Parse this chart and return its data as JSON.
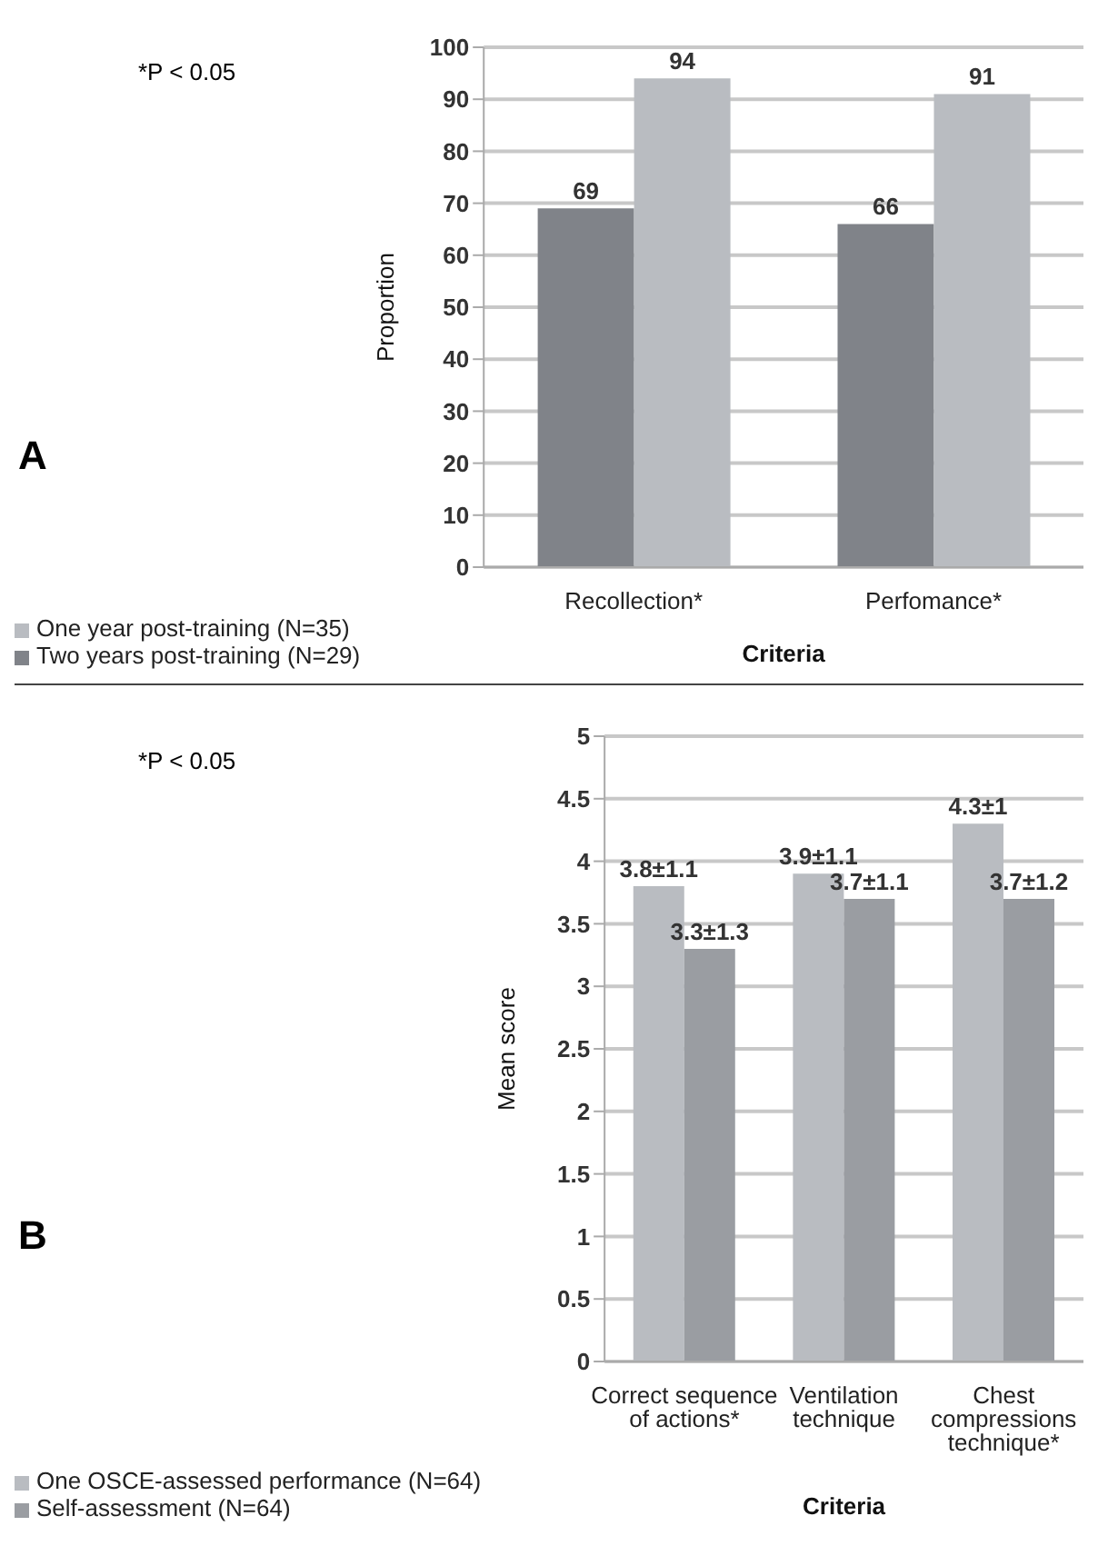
{
  "chart_data": [
    {
      "type": "bar",
      "ylabel": "Proportion",
      "xlabel": "Criteria",
      "categories": [
        "Recollection*",
        "Perfomance*"
      ],
      "series": [
        {
          "name": "Two years post-training (N=29)",
          "color": "#808389",
          "values": [
            69,
            66
          ]
        },
        {
          "name": "One year  post-training (N=35)",
          "color": "#b9bcc1",
          "values": [
            94,
            91
          ]
        }
      ],
      "ylim": [
        0,
        100
      ],
      "yticks": [
        0,
        10,
        20,
        30,
        40,
        50,
        60,
        70,
        80,
        90,
        100
      ],
      "grid": "y",
      "legend": "bottom",
      "data_labels": true,
      "annotations": [
        "A",
        "*P < 0.05"
      ]
    },
    {
      "type": "bar",
      "ylabel": "Mean score",
      "xlabel": "Criteria",
      "categories": [
        "Correct sequence of actions*",
        "Ventilation technique",
        "Chest compressions technique*"
      ],
      "series": [
        {
          "name": "One OSCE-assessed performance (N=64)",
          "color": "#b9bcc1",
          "values": [
            3.8,
            3.9,
            4.3
          ],
          "value_labels": [
            "3.8±1.1",
            "3.9±1.1",
            "4.3±1"
          ]
        },
        {
          "name": "Self-assessment (N=64)",
          "color": "#9a9da2",
          "values": [
            3.3,
            3.7,
            3.7
          ],
          "value_labels": [
            "3.3±1.3",
            "3.7±1.1",
            "3.7±1.2"
          ]
        }
      ],
      "ylim": [
        0,
        5
      ],
      "yticks": [
        0,
        0.5,
        1,
        1.5,
        2,
        2.5,
        3,
        3.5,
        4,
        4.5,
        5
      ],
      "grid": "y",
      "legend": "bottom",
      "annotations": [
        "B",
        "*P < 0.05"
      ]
    }
  ]
}
